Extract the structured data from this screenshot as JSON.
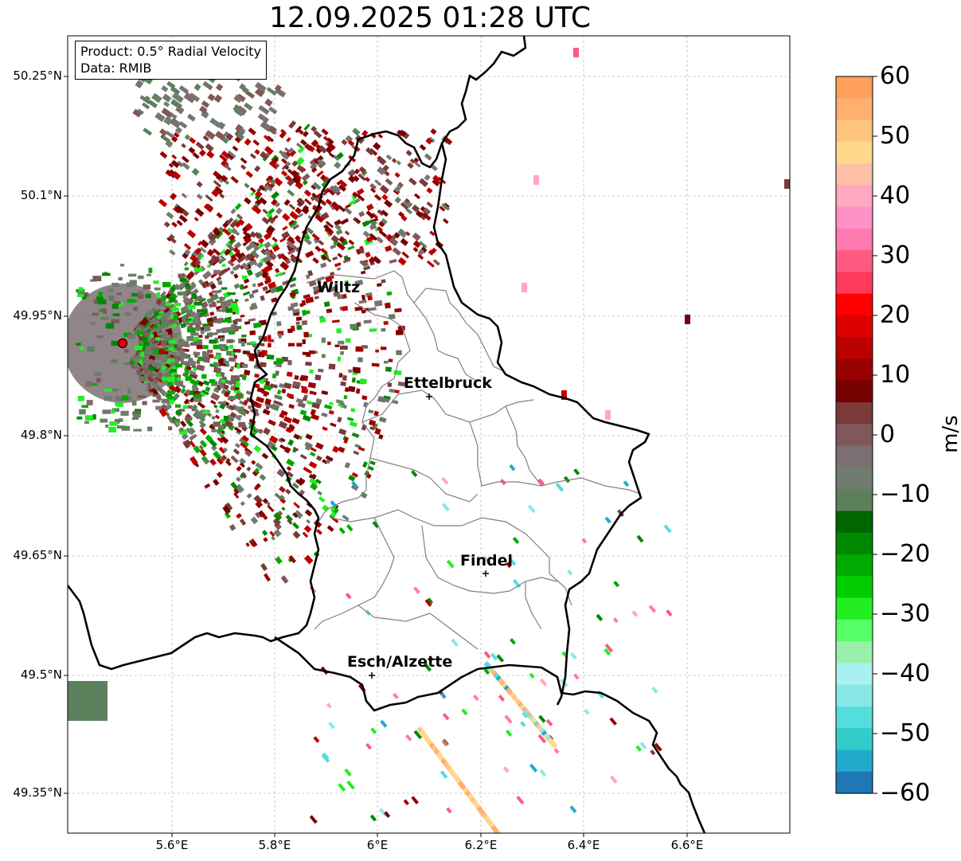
{
  "title": "12.09.2025 01:28 UTC",
  "info": {
    "product": "Product: 0.5° Radial Velocity",
    "data": "Data: RMIB"
  },
  "lat_labels": [
    "50.25°N",
    "50.1°N",
    "49.95°N",
    "49.8°N",
    "49.65°N",
    "49.5°N",
    "49.35°N"
  ],
  "lon_labels": [
    "5.6°E",
    "5.8°E",
    "6°E",
    "6.2°E",
    "6.4°E",
    "6.6°E"
  ],
  "cities": [
    "Wiltz",
    "Ettelbruck",
    "Findel",
    "Esch/Alzette"
  ],
  "colorbar": {
    "unit": "m/s",
    "ticks": [
      "60",
      "50",
      "40",
      "30",
      "20",
      "10",
      "0",
      "−10",
      "−20",
      "−30",
      "−40",
      "−50",
      "−60"
    ],
    "colors": [
      "#ff9f5a",
      "#ffb070",
      "#ffc480",
      "#ffd88e",
      "#ffc0a8",
      "#ffa8c0",
      "#ff90c8",
      "#ff7ab0",
      "#ff5a80",
      "#ff3a5a",
      "#ff0000",
      "#dd0000",
      "#bb0000",
      "#990000",
      "#770000",
      "#7a3a3a",
      "#80585a",
      "#7c6f72",
      "#6f7c6f",
      "#5c805c",
      "#006600",
      "#008800",
      "#00aa00",
      "#00cc00",
      "#22ee22",
      "#55ff66",
      "#99f0aa",
      "#aaf0ee",
      "#88e8e8",
      "#55dddd",
      "#33cccc",
      "#22aacc",
      "#1f77b4"
    ]
  },
  "radar_site": "red-marker"
}
